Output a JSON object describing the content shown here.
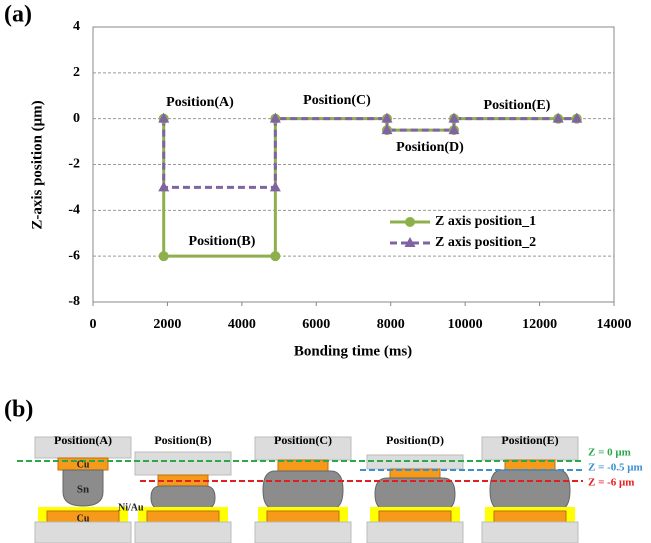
{
  "chart_data": {
    "type": "line",
    "panel_label": "(a)",
    "x_label": "Bonding time (ms)",
    "y_label": "Z-axis position (μm)",
    "x": [
      1900,
      1900,
      4900,
      4900,
      7900,
      7900,
      9700,
      9700,
      12500,
      13000
    ],
    "series": [
      {
        "name": "Z axis position_1",
        "color": "#8db04c",
        "marker": "circle",
        "values": [
          0,
          -6,
          -6,
          0,
          0,
          -0.5,
          -0.5,
          0,
          0,
          0
        ]
      },
      {
        "name": "Z axis position_2",
        "color": "#8064a2",
        "marker": "triangle",
        "values": [
          0,
          -3,
          -3,
          0,
          0,
          -0.5,
          -0.5,
          0,
          0,
          0
        ]
      }
    ],
    "annotations": [
      "Position(A)",
      "Position(B)",
      "Position(C)",
      "Position(D)",
      "Position(E)"
    ],
    "xlim": [
      0,
      14000
    ],
    "xticks": [
      0,
      2000,
      4000,
      6000,
      8000,
      10000,
      12000,
      14000
    ],
    "ylim": [
      -8,
      4
    ],
    "yticks": [
      -8,
      -6,
      -4,
      -2,
      0,
      2,
      4
    ],
    "grid": true
  },
  "diagram": {
    "panel_label": "(b)",
    "positions": [
      "Position(A)",
      "Position(B)",
      "Position(C)",
      "Position(D)",
      "Position(E)"
    ],
    "z_lines": [
      "Z = 0 μm",
      "Z = -0.5 μm",
      "Z = -6 μm"
    ],
    "materials": [
      "Cu",
      "Sn",
      "Ni/Au",
      "Cu"
    ]
  }
}
